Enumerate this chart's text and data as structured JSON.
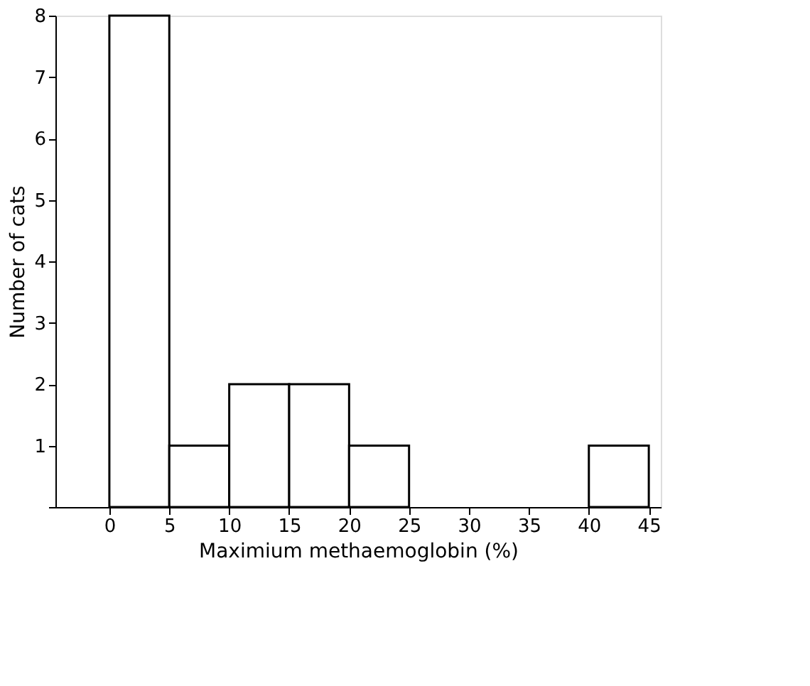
{
  "chart_data": {
    "type": "histogram",
    "xlabel": "Maximium methaemoglobin (%)",
    "ylabel": "Number of cats",
    "bins": [
      0,
      5,
      10,
      15,
      20,
      25,
      30,
      35,
      40,
      45
    ],
    "values": [
      8,
      1,
      2,
      2,
      1,
      0,
      0,
      0,
      1
    ],
    "color": "#ffffff",
    "xlim": [
      -4.5,
      46
    ],
    "xticks": [
      0,
      5,
      10,
      15,
      20,
      25,
      30,
      35,
      40,
      45
    ],
    "ylim": [
      0,
      8
    ],
    "yticks": [
      {
        "value": 0,
        "label": null
      },
      1,
      2,
      3,
      4,
      5,
      6,
      7,
      8
    ],
    "grid": false
  }
}
